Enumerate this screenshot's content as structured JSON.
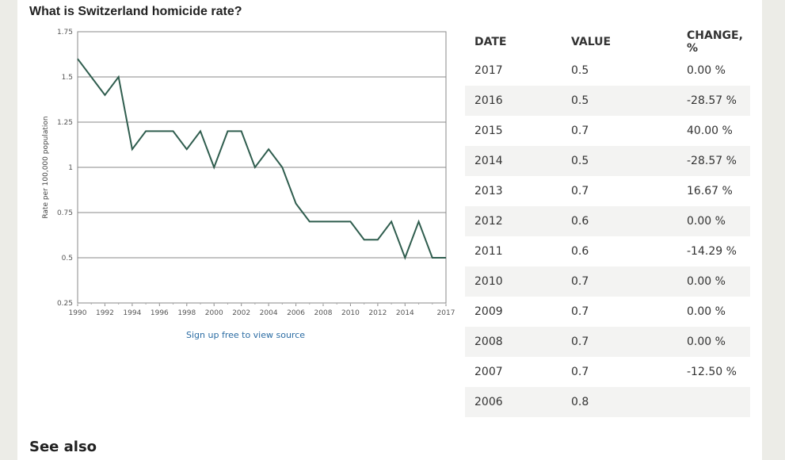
{
  "page": {
    "title": "What is Switzerland homicide rate?",
    "source_link": "Sign up free to view source",
    "see_also": "See also"
  },
  "table": {
    "headers": {
      "date": "DATE",
      "value": "VALUE",
      "change": "CHANGE, %"
    },
    "rows": [
      {
        "date": "2017",
        "value": "0.5",
        "change": "0.00 %"
      },
      {
        "date": "2016",
        "value": "0.5",
        "change": "-28.57 %"
      },
      {
        "date": "2015",
        "value": "0.7",
        "change": "40.00 %"
      },
      {
        "date": "2014",
        "value": "0.5",
        "change": "-28.57 %"
      },
      {
        "date": "2013",
        "value": "0.7",
        "change": "16.67 %"
      },
      {
        "date": "2012",
        "value": "0.6",
        "change": "0.00 %"
      },
      {
        "date": "2011",
        "value": "0.6",
        "change": "-14.29 %"
      },
      {
        "date": "2010",
        "value": "0.7",
        "change": "0.00 %"
      },
      {
        "date": "2009",
        "value": "0.7",
        "change": "0.00 %"
      },
      {
        "date": "2008",
        "value": "0.7",
        "change": "0.00 %"
      },
      {
        "date": "2007",
        "value": "0.7",
        "change": "-12.50 %"
      },
      {
        "date": "2006",
        "value": "0.8",
        "change": ""
      }
    ]
  },
  "chart_data": {
    "type": "line",
    "title": "What is Switzerland homicide rate?",
    "xlabel": "",
    "ylabel": "Rate per 100,000 population",
    "x": [
      1990,
      1991,
      1992,
      1993,
      1994,
      1995,
      1996,
      1997,
      1998,
      1999,
      2000,
      2001,
      2002,
      2003,
      2004,
      2005,
      2006,
      2007,
      2008,
      2009,
      2010,
      2011,
      2012,
      2013,
      2014,
      2015,
      2016,
      2017
    ],
    "series": [
      {
        "values": [
          1.6,
          1.5,
          1.4,
          1.5,
          1.1,
          1.2,
          1.2,
          1.2,
          1.1,
          1.2,
          1.0,
          1.2,
          1.2,
          1.0,
          1.1,
          1.0,
          0.8,
          0.7,
          0.7,
          0.7,
          0.7,
          0.6,
          0.6,
          0.7,
          0.5,
          0.7,
          0.5,
          0.5
        ],
        "color": "#2f5d4e"
      }
    ],
    "xlim": [
      1990,
      2017
    ],
    "ylim": [
      0.25,
      1.75
    ],
    "yticks": [
      "0.25",
      "0.5",
      "0.75",
      "1",
      "1.25",
      "1.5",
      "1.75"
    ],
    "xticks": [
      "1990",
      "1992",
      "1994",
      "1996",
      "1998",
      "2000",
      "2002",
      "2004",
      "2006",
      "2008",
      "2010",
      "2012",
      "2014",
      "2017"
    ],
    "grid": true,
    "legend": "none"
  }
}
